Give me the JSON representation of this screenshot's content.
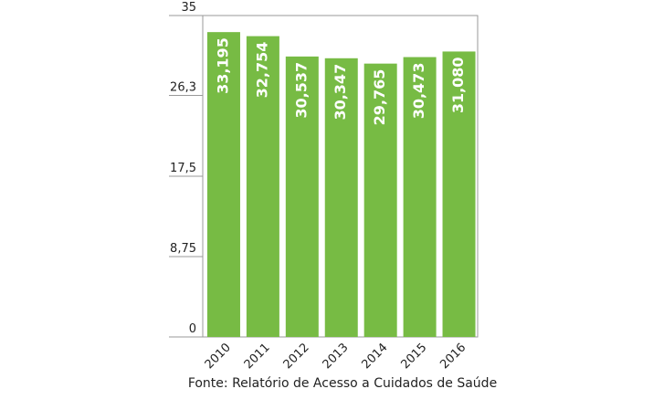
{
  "chart_data": {
    "type": "bar",
    "categories": [
      "2010",
      "2011",
      "2012",
      "2013",
      "2014",
      "2015",
      "2016"
    ],
    "values": [
      33.195,
      32.754,
      30.537,
      30.347,
      29.765,
      30.473,
      31.08
    ],
    "value_labels": [
      "33,195",
      "32,754",
      "30,537",
      "30,347",
      "29,765",
      "30,473",
      "31,080"
    ],
    "color": "#77bb44",
    "ylim": [
      0,
      35
    ],
    "yticks": [
      0,
      {
        "value": 8.75,
        "label": "8,75"
      },
      {
        "value": 17.5,
        "label": "17,5"
      },
      {
        "value": 26.3,
        "label": "26,3"
      },
      35
    ],
    "source": "Fonte: Relatório de Acesso a Cuidados de Saúde"
  }
}
